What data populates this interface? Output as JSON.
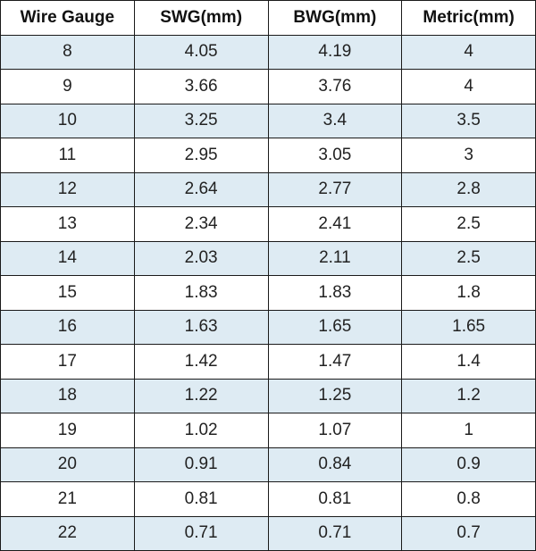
{
  "table": {
    "header": [
      "Wire Gauge",
      "SWG(mm)",
      "BWG(mm)",
      "Metric(mm)"
    ],
    "rows": [
      [
        "8",
        "4.05",
        "4.19",
        "4"
      ],
      [
        "9",
        "3.66",
        "3.76",
        "4"
      ],
      [
        "10",
        "3.25",
        "3.4",
        "3.5"
      ],
      [
        "11",
        "2.95",
        "3.05",
        "3"
      ],
      [
        "12",
        "2.64",
        "2.77",
        "2.8"
      ],
      [
        "13",
        "2.34",
        "2.41",
        "2.5"
      ],
      [
        "14",
        "2.03",
        "2.11",
        "2.5"
      ],
      [
        "15",
        "1.83",
        "1.83",
        "1.8"
      ],
      [
        "16",
        "1.63",
        "1.65",
        "1.65"
      ],
      [
        "17",
        "1.42",
        "1.47",
        "1.4"
      ],
      [
        "18",
        "1.22",
        "1.25",
        "1.2"
      ],
      [
        "19",
        "1.02",
        "1.07",
        "1"
      ],
      [
        "20",
        "0.91",
        "0.84",
        "0.9"
      ],
      [
        "21",
        "0.81",
        "0.81",
        "0.8"
      ],
      [
        "22",
        "0.71",
        "0.71",
        "0.7"
      ]
    ]
  }
}
